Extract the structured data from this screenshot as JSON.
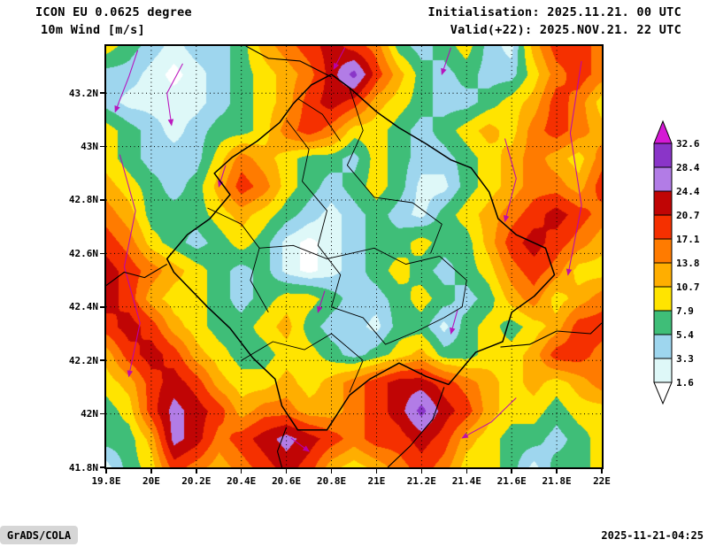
{
  "header": {
    "model": "ICON EU 0.0625 degree",
    "field": "10m Wind [m/s]",
    "init_label": "Initialisation: 2025.11.21. 00 UTC",
    "valid_label": "Valid(+22): 2025.NOV.21. 22 UTC"
  },
  "footer": {
    "brand": "GrADS/COLA",
    "timestamp": "2025-11-21-04:25"
  },
  "colors": {
    "background": "#ffffff",
    "frame": "#000000",
    "boundary": "#000000",
    "grid_dots": "#000000",
    "streamline": "#b800b8",
    "stamp_bg": "#d6d6d6"
  },
  "legend": {
    "labels": [
      "32.6",
      "28.4",
      "24.4",
      "20.7",
      "17.1",
      "13.8",
      "10.7",
      "7.9",
      "5.4",
      "3.3",
      "1.6"
    ]
  },
  "chart_data": {
    "type": "heatmap",
    "title": "10m Wind [m/s]",
    "model": "ICON EU 0.0625 degree",
    "unit": "m/s",
    "lon_range": [
      19.8,
      22.0
    ],
    "lat_range": [
      41.8,
      43.376
    ],
    "x_tick_values": [
      19.8,
      20,
      20.2,
      20.4,
      20.6,
      20.8,
      21,
      21.2,
      21.4,
      21.6,
      21.8,
      22
    ],
    "x_tick_labels": [
      "19.8E",
      "20E",
      "20.2E",
      "20.4E",
      "20.6E",
      "20.8E",
      "21E",
      "21.2E",
      "21.4E",
      "21.6E",
      "21.8E",
      "22E"
    ],
    "y_tick_values": [
      41.8,
      42,
      42.2,
      42.4,
      42.6,
      42.8,
      43,
      43.2
    ],
    "y_tick_labels": [
      "41.8N",
      "42N",
      "42.2N",
      "42.4N",
      "42.6N",
      "42.8N",
      "43N",
      "43.2N"
    ],
    "levels": [
      1.6,
      3.3,
      5.4,
      7.9,
      10.7,
      13.8,
      17.1,
      20.7,
      24.4,
      28.4,
      32.6
    ],
    "palette": [
      "#ffffff",
      "#def8f8",
      "#9ed6ee",
      "#3fbe78",
      "#ffe400",
      "#ffae00",
      "#ff7b00",
      "#f53000",
      "#c00505",
      "#b27ce6",
      "#8a35c8",
      "#d519d5"
    ],
    "grid": {
      "rows": 16,
      "cols": 23,
      "values": [
        [
          9.2,
          6.5,
          4.3,
          2.5,
          4.3,
          4.3,
          6.5,
          12,
          15.5,
          19,
          22.5,
          19,
          15.5,
          6.5,
          4.3,
          6.5,
          9.2,
          4.3,
          2.5,
          12,
          19,
          19,
          15.5
        ],
        [
          4.3,
          4.3,
          2.5,
          1,
          2.5,
          4.3,
          6.5,
          9.2,
          12,
          15.5,
          22.5,
          30,
          19,
          12,
          6.5,
          4.3,
          6.5,
          4.3,
          4.3,
          9.2,
          15.5,
          19,
          15.5
        ],
        [
          4.3,
          2.5,
          2.5,
          2.5,
          2.5,
          4.3,
          6.5,
          9.2,
          12,
          19,
          22.5,
          19,
          12,
          9.2,
          6.5,
          4.3,
          4.3,
          6.5,
          9.2,
          12,
          19,
          15.5,
          9.2
        ],
        [
          9.2,
          6.5,
          4.3,
          2.5,
          4.3,
          6.5,
          6.5,
          9.2,
          15.5,
          19,
          15.5,
          9.2,
          9.2,
          6.5,
          4.3,
          6.5,
          9.2,
          12,
          9.2,
          15.5,
          19,
          15.5,
          12
        ],
        [
          9.2,
          6.5,
          4.3,
          4.3,
          4.3,
          9.2,
          15.5,
          12,
          9.2,
          6.5,
          6.5,
          4.3,
          9.2,
          6.5,
          4.3,
          4.3,
          6.5,
          9.2,
          12,
          15.5,
          12,
          9.2,
          15.5
        ],
        [
          12,
          9.2,
          6.5,
          4.3,
          6.5,
          12,
          19,
          15.5,
          9.2,
          6.5,
          4.3,
          6.5,
          9.2,
          6.5,
          2.5,
          2.5,
          6.5,
          9.2,
          12,
          15.5,
          15.5,
          12,
          19
        ],
        [
          15.5,
          12,
          6.5,
          6.5,
          6.5,
          9.2,
          12,
          9.2,
          6.5,
          4.3,
          2.5,
          4.3,
          6.5,
          4.3,
          2.5,
          6.5,
          9.2,
          12,
          15.5,
          19,
          22.5,
          19,
          15.5
        ],
        [
          19,
          15.5,
          9.2,
          6.5,
          4.3,
          6.5,
          9.2,
          6.5,
          2.5,
          1,
          2.5,
          4.3,
          6.5,
          6.5,
          9.2,
          6.5,
          6.5,
          12,
          19,
          22.5,
          19,
          15.5,
          12
        ],
        [
          22.5,
          19,
          15.5,
          12,
          9.2,
          6.5,
          4.3,
          6.5,
          2.5,
          1,
          2.5,
          4.3,
          6.5,
          9.2,
          6.5,
          4.3,
          6.5,
          9.2,
          15.5,
          19,
          15.5,
          9.2,
          9.2
        ],
        [
          22.5,
          19,
          12,
          9.2,
          9.2,
          6.5,
          4.3,
          6.5,
          9.2,
          9.2,
          6.5,
          4.3,
          4.3,
          6.5,
          9.2,
          6.5,
          4.3,
          6.5,
          12,
          15.5,
          9.2,
          12,
          15.5
        ],
        [
          19,
          22.5,
          19,
          12,
          9.2,
          6.5,
          6.5,
          9.2,
          12,
          6.5,
          4.3,
          4.3,
          2.5,
          6.5,
          6.5,
          2.5,
          6.5,
          9.2,
          6.5,
          9.2,
          12,
          19,
          19
        ],
        [
          12,
          19,
          22.5,
          19,
          12,
          9.2,
          6.5,
          6.5,
          9.2,
          9.2,
          6.5,
          4.3,
          6.5,
          9.2,
          12,
          6.5,
          6.5,
          9.2,
          9.2,
          12,
          19,
          19,
          15.5
        ],
        [
          9.2,
          12,
          19,
          22.5,
          19,
          12,
          9.2,
          9.2,
          12,
          9.2,
          12,
          15.5,
          19,
          22.5,
          22.5,
          19,
          15.5,
          12,
          9.2,
          12,
          9.2,
          12,
          15.5
        ],
        [
          6.5,
          9.2,
          19,
          26,
          22.5,
          19,
          12,
          15.5,
          15.5,
          12,
          12,
          15.5,
          19,
          22.5,
          30,
          22.5,
          19,
          12,
          9.2,
          9.2,
          6.5,
          9.2,
          9.2
        ],
        [
          6.5,
          6.5,
          12,
          26,
          22.5,
          15.5,
          19,
          22.5,
          26,
          22.5,
          19,
          15.5,
          19,
          19,
          22.5,
          19,
          12,
          9.2,
          6.5,
          6.5,
          4.3,
          6.5,
          9.2
        ],
        [
          2.5,
          6.5,
          9.2,
          19,
          15.5,
          12,
          15.5,
          19,
          22.5,
          19,
          12,
          9.2,
          12,
          15.5,
          19,
          15.5,
          9.2,
          9.2,
          6.5,
          2.5,
          6.5,
          6.5,
          9.2
        ]
      ]
    },
    "boundaries": {
      "outline": [
        [
          20.88,
          43.22
        ],
        [
          21.0,
          43.13
        ],
        [
          21.1,
          43.07
        ],
        [
          21.22,
          43.01
        ],
        [
          21.33,
          42.95
        ],
        [
          21.42,
          42.92
        ],
        [
          21.5,
          42.83
        ],
        [
          21.54,
          42.73
        ],
        [
          21.62,
          42.67
        ],
        [
          21.75,
          42.62
        ],
        [
          21.79,
          42.52
        ],
        [
          21.7,
          42.44
        ],
        [
          21.6,
          42.38
        ],
        [
          21.56,
          42.27
        ],
        [
          21.44,
          42.23
        ],
        [
          21.32,
          42.11
        ],
        [
          21.22,
          42.14
        ],
        [
          21.1,
          42.19
        ],
        [
          20.97,
          42.13
        ],
        [
          20.88,
          42.07
        ],
        [
          20.78,
          41.94
        ],
        [
          20.65,
          41.94
        ],
        [
          20.58,
          42.03
        ],
        [
          20.55,
          42.13
        ],
        [
          20.45,
          42.21
        ],
        [
          20.35,
          42.32
        ],
        [
          20.25,
          42.4
        ],
        [
          20.1,
          42.53
        ],
        [
          20.07,
          42.58
        ],
        [
          20.16,
          42.67
        ],
        [
          20.26,
          42.73
        ],
        [
          20.35,
          42.82
        ],
        [
          20.28,
          42.9
        ],
        [
          20.36,
          42.96
        ],
        [
          20.47,
          43.02
        ],
        [
          20.57,
          43.09
        ],
        [
          20.63,
          43.16
        ],
        [
          20.71,
          43.23
        ],
        [
          20.8,
          43.27
        ]
      ],
      "internal": [
        [
          [
            20.25,
            42.77
          ],
          [
            20.4,
            42.71
          ],
          [
            20.48,
            42.62
          ],
          [
            20.44,
            42.5
          ],
          [
            20.52,
            42.38
          ]
        ],
        [
          [
            20.4,
            42.2
          ],
          [
            20.54,
            42.27
          ],
          [
            20.68,
            42.24
          ],
          [
            20.8,
            42.3
          ]
        ],
        [
          [
            20.6,
            43.1
          ],
          [
            20.7,
            42.99
          ],
          [
            20.67,
            42.87
          ],
          [
            20.78,
            42.76
          ],
          [
            20.74,
            42.63
          ],
          [
            20.84,
            42.52
          ],
          [
            20.8,
            42.4
          ]
        ],
        [
          [
            20.88,
            43.22
          ],
          [
            20.94,
            43.06
          ],
          [
            20.87,
            42.93
          ],
          [
            20.99,
            42.81
          ]
        ],
        [
          [
            20.48,
            42.62
          ],
          [
            20.63,
            42.63
          ],
          [
            20.78,
            42.58
          ],
          [
            20.99,
            42.62
          ],
          [
            21.13,
            42.56
          ],
          [
            21.28,
            42.59
          ]
        ],
        [
          [
            20.99,
            42.81
          ],
          [
            21.16,
            42.79
          ],
          [
            21.29,
            42.71
          ],
          [
            21.24,
            42.6
          ]
        ],
        [
          [
            20.8,
            42.4
          ],
          [
            20.94,
            42.36
          ],
          [
            21.04,
            42.26
          ],
          [
            21.18,
            42.31
          ],
          [
            21.3,
            42.36
          ]
        ],
        [
          [
            20.88,
            42.08
          ],
          [
            20.94,
            42.2
          ],
          [
            20.8,
            42.3
          ]
        ],
        [
          [
            21.28,
            42.59
          ],
          [
            21.4,
            42.5
          ],
          [
            21.38,
            42.4
          ],
          [
            21.3,
            42.36
          ]
        ],
        [
          [
            20.65,
            43.18
          ],
          [
            20.76,
            43.12
          ],
          [
            20.84,
            43.02
          ]
        ]
      ],
      "external": [
        [
          [
            20.07,
            42.56
          ],
          [
            19.97,
            42.51
          ],
          [
            19.88,
            42.53
          ],
          [
            19.8,
            42.48
          ]
        ],
        [
          [
            20.8,
            43.26
          ],
          [
            20.66,
            43.32
          ],
          [
            20.52,
            43.33
          ],
          [
            20.42,
            43.376
          ]
        ],
        [
          [
            21.55,
            42.25
          ],
          [
            21.68,
            42.26
          ],
          [
            21.8,
            42.31
          ],
          [
            21.95,
            42.3
          ],
          [
            22.0,
            42.34
          ]
        ],
        [
          [
            20.6,
            41.95
          ],
          [
            20.56,
            41.86
          ],
          [
            20.58,
            41.8
          ]
        ],
        [
          [
            21.3,
            42.1
          ],
          [
            21.25,
            41.98
          ],
          [
            21.15,
            41.88
          ],
          [
            21.05,
            41.8
          ]
        ]
      ]
    },
    "streamlines": [
      [
        [
          19.94,
          43.36
        ],
        [
          19.9,
          43.26
        ],
        [
          19.84,
          43.13
        ]
      ],
      [
        [
          20.14,
          43.31
        ],
        [
          20.07,
          43.2
        ],
        [
          20.09,
          43.08
        ]
      ],
      [
        [
          20.86,
          43.37
        ],
        [
          20.81,
          43.29
        ]
      ],
      [
        [
          21.33,
          43.37
        ],
        [
          21.29,
          43.27
        ]
      ],
      [
        [
          20.33,
          42.93
        ],
        [
          20.3,
          42.85
        ]
      ],
      [
        [
          20.77,
          42.46
        ],
        [
          20.74,
          42.38
        ]
      ],
      [
        [
          21.36,
          42.39
        ],
        [
          21.33,
          42.3
        ]
      ],
      [
        [
          21.91,
          43.32
        ],
        [
          21.86,
          43.05
        ],
        [
          21.91,
          42.78
        ],
        [
          21.85,
          42.52
        ]
      ],
      [
        [
          21.62,
          42.06
        ],
        [
          21.51,
          41.97
        ],
        [
          21.38,
          41.91
        ]
      ],
      [
        [
          19.86,
          42.97
        ],
        [
          19.93,
          42.76
        ],
        [
          19.88,
          42.55
        ],
        [
          19.95,
          42.34
        ],
        [
          19.9,
          42.14
        ]
      ],
      [
        [
          20.62,
          41.91
        ],
        [
          20.7,
          41.86
        ]
      ],
      [
        [
          21.57,
          43.03
        ],
        [
          21.62,
          42.88
        ],
        [
          21.57,
          42.72
        ]
      ]
    ]
  }
}
